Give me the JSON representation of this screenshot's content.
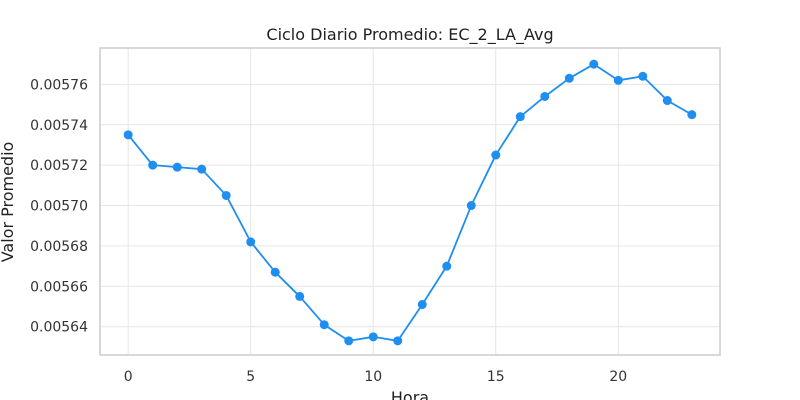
{
  "chart_data": {
    "type": "line",
    "title": "Ciclo Diario Promedio: EC_2_LA_Avg",
    "xlabel": "Hora",
    "ylabel": "Valor Promedio",
    "x": [
      0,
      1,
      2,
      3,
      4,
      5,
      6,
      7,
      8,
      9,
      10,
      11,
      12,
      13,
      14,
      15,
      16,
      17,
      18,
      19,
      20,
      21,
      22,
      23
    ],
    "series": [
      {
        "values": [
          0.005735,
          0.00572,
          0.005719,
          0.005718,
          0.005705,
          0.005682,
          0.005667,
          0.005655,
          0.005641,
          0.005633,
          0.005635,
          0.005633,
          0.005651,
          0.00567,
          0.0057,
          0.005725,
          0.005744,
          0.005754,
          0.005763,
          0.00577,
          0.005762,
          0.005764,
          0.005752,
          0.005745
        ],
        "color": "#1f8ef1"
      }
    ],
    "xlim": [
      -1.15,
      24.15
    ],
    "ylim": [
      0.005626,
      0.005778
    ],
    "xticks": [
      0,
      5,
      10,
      15,
      20
    ],
    "xtick_labels": [
      "0",
      "5",
      "10",
      "15",
      "20"
    ],
    "yticks": [
      0.00564,
      0.00566,
      0.00568,
      0.0057,
      0.00572,
      0.00574,
      0.00576
    ],
    "ytick_labels": [
      "0.00564",
      "0.00566",
      "0.00568",
      "0.00570",
      "0.00572",
      "0.00574",
      "0.00576"
    ],
    "grid": true,
    "legend": "none"
  }
}
